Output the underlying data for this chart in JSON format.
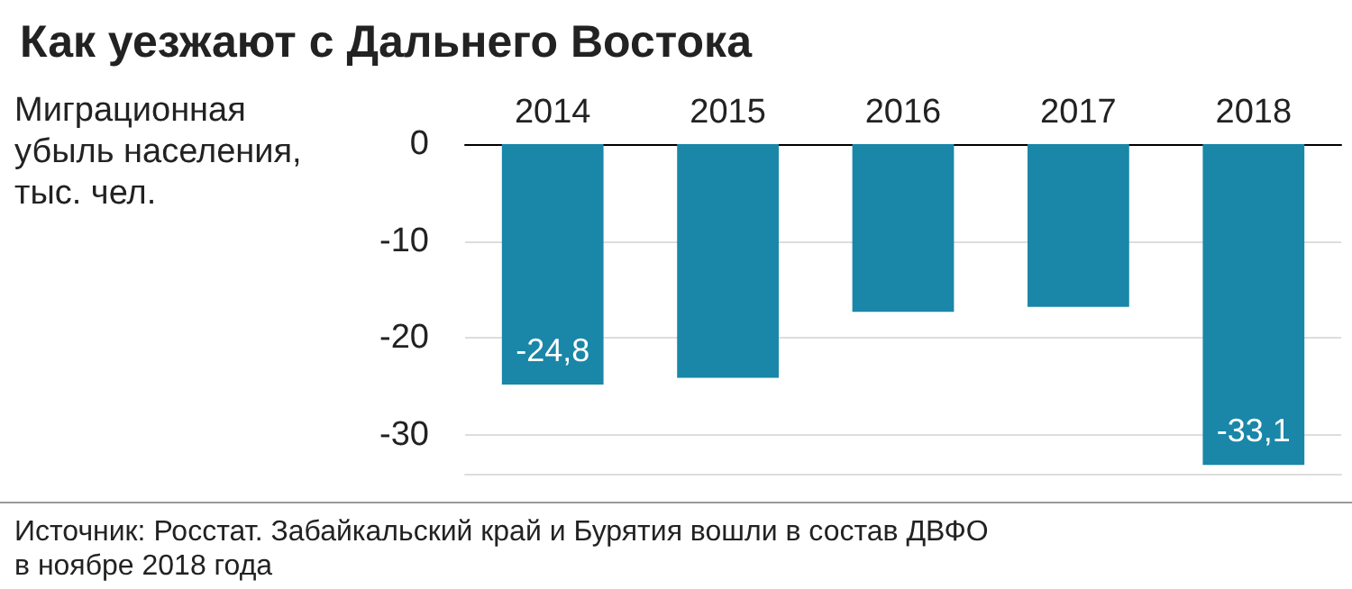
{
  "chart_data": {
    "type": "bar",
    "title": "Как уезжают с Дальнего Востока",
    "ylabel": "Миграционная\nубыль населения,\nтыс. чел.",
    "categories": [
      "2014",
      "2015",
      "2016",
      "2017",
      "2018"
    ],
    "values": [
      -24.8,
      -24.1,
      -17.3,
      -16.8,
      -33.1
    ],
    "value_labels": [
      "-24,8",
      null,
      null,
      null,
      "-33,1"
    ],
    "color": "#1a86a8",
    "ylim": [
      -34,
      0
    ],
    "yticks": [
      0,
      -10,
      -20,
      -30
    ],
    "grid": "y",
    "annotations": [
      "Источник: Росстат. Забайкальский край и Бурятия вошли в состав ДВФО\nв ноябре 2018 года"
    ]
  }
}
